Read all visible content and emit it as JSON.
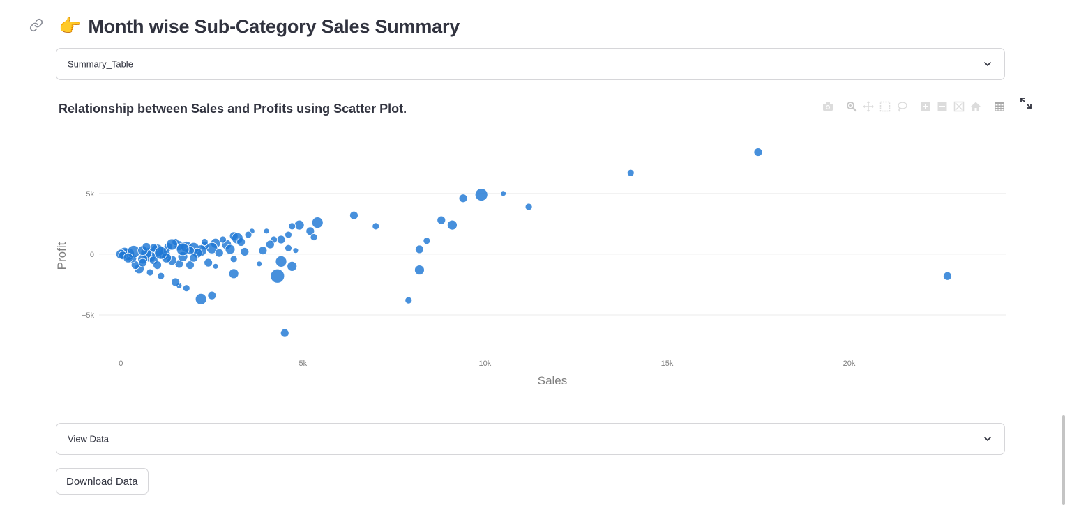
{
  "header": {
    "emoji": "👉",
    "title": "Month wise Sub-Category Sales Summary"
  },
  "expanders": {
    "summary_label": "Summary_Table",
    "view_data_label": "View Data"
  },
  "chart_section": {
    "title": "Relationship between Sales and Profits using Scatter Plot."
  },
  "modebar_icons": [
    "camera-icon",
    "zoom-icon",
    "pan-icon",
    "box-select-icon",
    "lasso-icon",
    "zoom-in-icon",
    "zoom-out-icon",
    "autoscale-icon",
    "reset-axes-icon",
    "table-icon"
  ],
  "download_label": "Download Data",
  "colors": {
    "marker": "#1f77d4",
    "marker_edge": "#ffffff",
    "grid": "#ebebeb",
    "axis_text": "#7f7f7f"
  },
  "chart_data": {
    "type": "scatter",
    "xlabel": "Sales",
    "ylabel": "Profit",
    "x_ticks": [
      0,
      5000,
      10000,
      15000,
      20000
    ],
    "x_tick_labels": [
      "0",
      "5k",
      "10k",
      "15k",
      "20k"
    ],
    "y_ticks": [
      -5000,
      0,
      5000
    ],
    "y_tick_labels": [
      "−5k",
      "0",
      "5k"
    ],
    "xlim": [
      -600,
      24300
    ],
    "ylim": [
      -8500,
      10500
    ],
    "grid": "horizontal",
    "marker_size_encoding": "variable",
    "points": [
      [
        17500,
        8400,
        6
      ],
      [
        14000,
        6700,
        5
      ],
      [
        10500,
        5000,
        4
      ],
      [
        9900,
        4900,
        9
      ],
      [
        9400,
        4600,
        6
      ],
      [
        11200,
        3900,
        5
      ],
      [
        8800,
        2800,
        6
      ],
      [
        9100,
        2400,
        7
      ],
      [
        6400,
        3200,
        6
      ],
      [
        7000,
        2300,
        5
      ],
      [
        8400,
        1100,
        5
      ],
      [
        8200,
        400,
        6
      ],
      [
        8200,
        -1300,
        7
      ],
      [
        7900,
        -3800,
        5
      ],
      [
        22700,
        -1800,
        6
      ],
      [
        5400,
        2600,
        8
      ],
      [
        5200,
        1900,
        6
      ],
      [
        5300,
        1400,
        5
      ],
      [
        4900,
        2400,
        7
      ],
      [
        4700,
        2300,
        5
      ],
      [
        4600,
        1600,
        5
      ],
      [
        4400,
        1200,
        6
      ],
      [
        4800,
        300,
        4
      ],
      [
        4600,
        500,
        5
      ],
      [
        4200,
        1200,
        5
      ],
      [
        4100,
        800,
        6
      ],
      [
        3900,
        300,
        6
      ],
      [
        4400,
        -600,
        8
      ],
      [
        4700,
        -1000,
        7
      ],
      [
        4300,
        -1800,
        10
      ],
      [
        4500,
        -6500,
        6
      ],
      [
        3800,
        -800,
        4
      ],
      [
        4000,
        1900,
        4
      ],
      [
        3600,
        1900,
        4
      ],
      [
        3100,
        1500,
        6
      ],
      [
        3200,
        1300,
        8
      ],
      [
        3500,
        1600,
        5
      ],
      [
        3300,
        1000,
        6
      ],
      [
        2900,
        800,
        7
      ],
      [
        3000,
        400,
        7
      ],
      [
        3100,
        -400,
        5
      ],
      [
        3100,
        -1600,
        7
      ],
      [
        2600,
        900,
        7
      ],
      [
        2500,
        500,
        8
      ],
      [
        2300,
        700,
        6
      ],
      [
        2200,
        300,
        8
      ],
      [
        2400,
        -700,
        6
      ],
      [
        2600,
        -1000,
        4
      ],
      [
        2500,
        -3400,
        6
      ],
      [
        2200,
        -3700,
        8
      ],
      [
        1800,
        -2800,
        5
      ],
      [
        1600,
        -2600,
        4
      ],
      [
        1500,
        -2300,
        6
      ],
      [
        1100,
        -1800,
        5
      ],
      [
        1900,
        -900,
        6
      ],
      [
        1600,
        -800,
        6
      ],
      [
        1400,
        -500,
        7
      ],
      [
        1200,
        0,
        8
      ],
      [
        1000,
        300,
        9
      ],
      [
        800,
        -200,
        8
      ],
      [
        700,
        100,
        8
      ],
      [
        600,
        -400,
        7
      ],
      [
        500,
        -1200,
        7
      ],
      [
        400,
        -900,
        6
      ],
      [
        300,
        -300,
        7
      ],
      [
        200,
        0,
        9
      ],
      [
        100,
        100,
        8
      ],
      [
        0,
        0,
        7
      ],
      [
        50,
        -100,
        6
      ],
      [
        350,
        200,
        9
      ],
      [
        600,
        300,
        7
      ],
      [
        900,
        500,
        6
      ],
      [
        1300,
        600,
        6
      ],
      [
        1600,
        700,
        7
      ],
      [
        1800,
        600,
        8
      ],
      [
        2000,
        500,
        8
      ],
      [
        2100,
        100,
        7
      ],
      [
        1700,
        -200,
        7
      ],
      [
        1900,
        300,
        6
      ],
      [
        2700,
        100,
        6
      ],
      [
        2800,
        1200,
        5
      ],
      [
        1500,
        1000,
        5
      ],
      [
        900,
        -500,
        6
      ],
      [
        800,
        -1500,
        5
      ],
      [
        1250,
        -300,
        7
      ],
      [
        1000,
        -900,
        6
      ],
      [
        600,
        -700,
        6
      ],
      [
        2000,
        -300,
        6
      ],
      [
        2300,
        1000,
        5
      ],
      [
        3400,
        200,
        6
      ],
      [
        1700,
        400,
        9
      ],
      [
        700,
        600,
        6
      ],
      [
        1100,
        100,
        9
      ],
      [
        200,
        -300,
        7
      ],
      [
        1400,
        800,
        8
      ]
    ]
  }
}
